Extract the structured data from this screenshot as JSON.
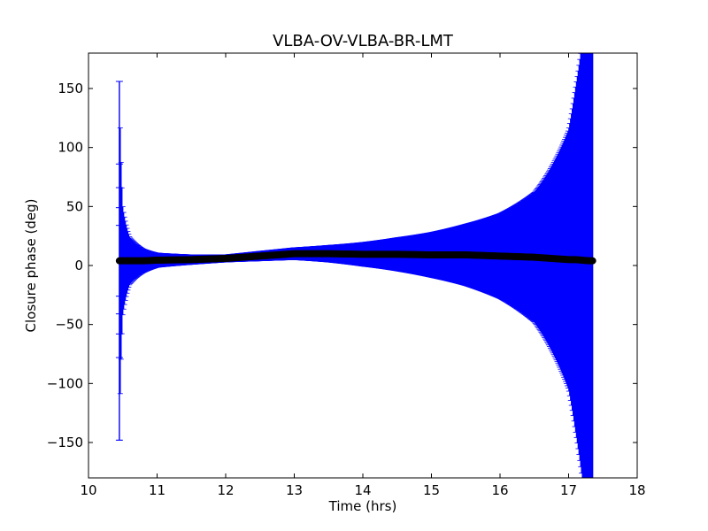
{
  "chart_data": {
    "type": "scatter",
    "title": "VLBA-OV-VLBA-BR-LMT",
    "xlabel": "Time (hrs)",
    "ylabel": "Closure phase (deg)",
    "xlim": [
      10,
      18
    ],
    "ylim": [
      -180,
      180
    ],
    "x_ticks": [
      10,
      11,
      12,
      13,
      14,
      15,
      16,
      17,
      18
    ],
    "x_tick_labels": [
      "10",
      "11",
      "12",
      "13",
      "14",
      "15",
      "16",
      "17",
      "18"
    ],
    "y_ticks": [
      -150,
      -100,
      -50,
      0,
      50,
      100,
      150
    ],
    "y_tick_labels": [
      "−150",
      "−100",
      "−50",
      "0",
      "50",
      "100",
      "150"
    ],
    "grid": false,
    "series": [
      {
        "marker": "circle",
        "errorbars": "vertical",
        "marker_color": "#000000",
        "errorbar_color": "#0000ff",
        "x_start": 10.45,
        "x_end": 17.35,
        "points": [
          {
            "x": 10.45,
            "y": 4,
            "err": 152
          },
          {
            "x": 10.5,
            "y": 4,
            "err": 45
          },
          {
            "x": 10.6,
            "y": 4,
            "err": 20
          },
          {
            "x": 10.8,
            "y": 4,
            "err": 10
          },
          {
            "x": 11.0,
            "y": 4.5,
            "err": 6
          },
          {
            "x": 11.5,
            "y": 5,
            "err": 4
          },
          {
            "x": 12.0,
            "y": 6,
            "err": 3
          },
          {
            "x": 12.5,
            "y": 8,
            "err": 4
          },
          {
            "x": 13.0,
            "y": 10,
            "err": 5
          },
          {
            "x": 13.5,
            "y": 10,
            "err": 7
          },
          {
            "x": 14.0,
            "y": 9.5,
            "err": 10
          },
          {
            "x": 14.5,
            "y": 9.5,
            "err": 14
          },
          {
            "x": 15.0,
            "y": 9,
            "err": 19
          },
          {
            "x": 15.5,
            "y": 9,
            "err": 26
          },
          {
            "x": 16.0,
            "y": 8,
            "err": 36
          },
          {
            "x": 16.5,
            "y": 7,
            "err": 55
          },
          {
            "x": 17.0,
            "y": 5,
            "err": 110
          },
          {
            "x": 17.1,
            "y": 5,
            "err": 145
          },
          {
            "x": 17.2,
            "y": 4.5,
            "err": 185
          },
          {
            "x": 17.3,
            "y": 4,
            "err": 200
          },
          {
            "x": 17.35,
            "y": 4,
            "err": 200
          }
        ]
      }
    ]
  },
  "colors": {
    "errorbar": "#0000ff",
    "marker": "#000000",
    "axes": "#000000",
    "background": "#ffffff"
  }
}
